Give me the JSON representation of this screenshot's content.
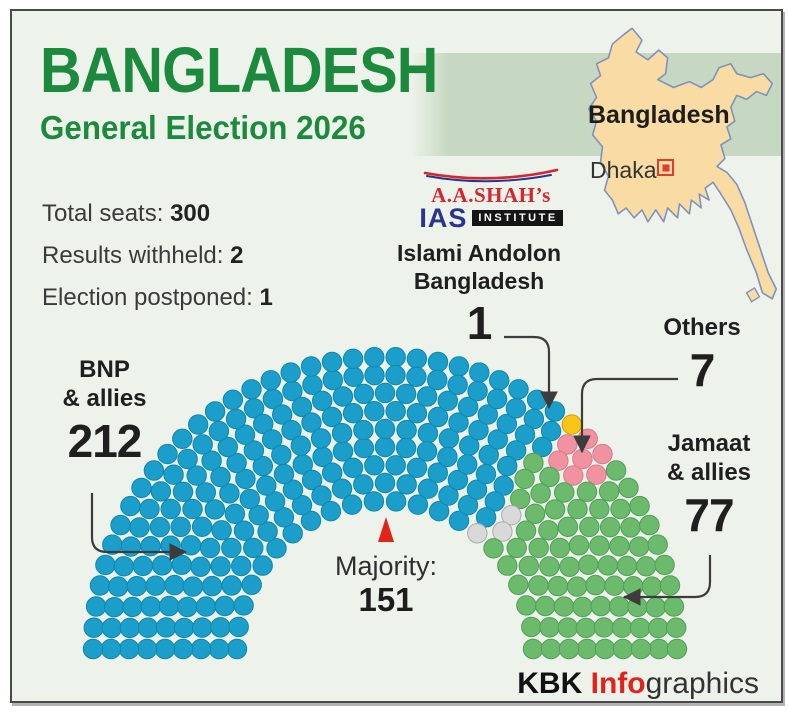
{
  "header": {
    "title": "BANGLADESH",
    "subtitle": "General Election 2026"
  },
  "stats": [
    {
      "label": "Total seats:",
      "value": "300"
    },
    {
      "label": "Results withheld:",
      "value": "2"
    },
    {
      "label": "Election postponed:",
      "value": "1"
    }
  ],
  "logo": {
    "line1": "A.A.SHAH’s",
    "line2": "IAS",
    "line3": "INSTITUTE"
  },
  "map": {
    "country_label": "Bangladesh",
    "city_label": "Dhaka"
  },
  "majority": {
    "label": "Majority:",
    "value": "151"
  },
  "credit": {
    "part1": "KBK ",
    "part2": "Info",
    "part3": "graphics"
  },
  "colors": {
    "title_green": "#1c8a3c",
    "panel_bg": "#edf2ea",
    "band_green": "#c6d8c1",
    "accent_red": "#e2231a",
    "map_fill": "#f8dca4",
    "map_stroke": "#7e92bd"
  },
  "chart_data": {
    "type": "parliament",
    "title": "Bangladesh General Election 2026 — seat distribution",
    "total_seats": 300,
    "majority_mark": 151,
    "layout": {
      "rows": 9,
      "arc_degrees": 180,
      "legend_position": "around-chart",
      "grid": false
    },
    "parties": [
      {
        "name": "BNP & allies",
        "label_lines": [
          "BNP",
          "& allies"
        ],
        "seats": 212,
        "color": "#1b9fca",
        "stroke": "#0f86ad"
      },
      {
        "name": "Islami Andolon Bangladesh",
        "label_lines": [
          "Islami Andolon",
          "Bangladesh"
        ],
        "seats": 1,
        "color": "#f7c617",
        "stroke": "#cfa00a"
      },
      {
        "name": "Others",
        "label_lines": [
          "Others"
        ],
        "seats": 7,
        "color": "#f192a0",
        "stroke": "#d9798c"
      },
      {
        "name": "Jamaat & allies",
        "label_lines": [
          "Jamaat",
          "& allies"
        ],
        "seats": 77,
        "color": "#6cbb6d",
        "stroke": "#4f9e58"
      },
      {
        "name": "Results withheld / Election postponed",
        "label_lines": [],
        "seats": 3,
        "color": "#d9d9d9",
        "stroke": "#ababab"
      }
    ]
  }
}
